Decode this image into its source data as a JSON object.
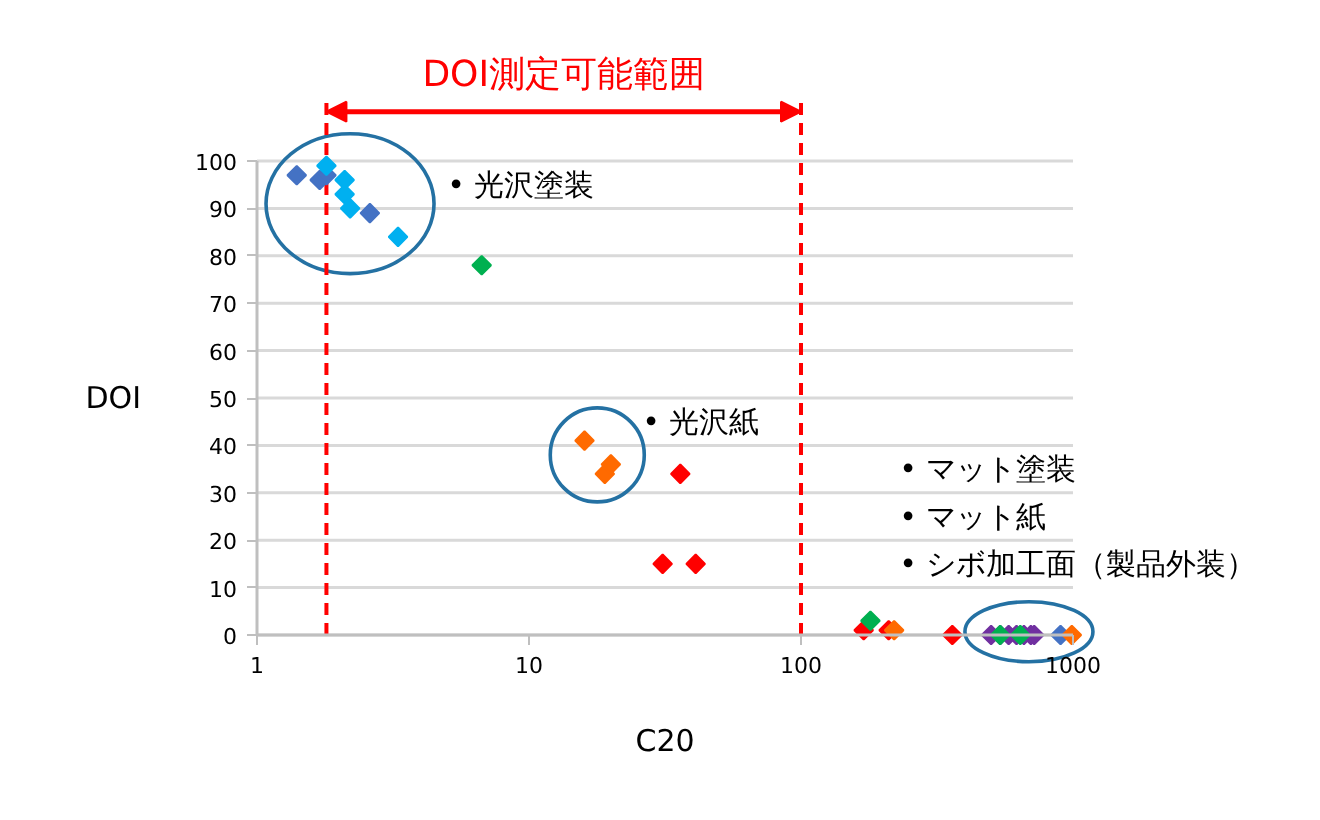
{
  "chart_data": {
    "type": "scatter",
    "xlabel": "C20",
    "ylabel": "DOI",
    "log": "x",
    "xlim": [
      1,
      1000
    ],
    "xticks": [
      1,
      10,
      100,
      1000
    ],
    "ylim": [
      0,
      100
    ],
    "yticks": [
      0,
      10,
      20,
      30,
      40,
      50,
      60,
      70,
      80,
      90,
      100
    ],
    "grid": "y",
    "marker": "diamond",
    "series": [
      {
        "color": "#7030a0",
        "x": [
          500,
          540,
          580,
          620,
          660,
          700,
          720
        ],
        "values": [
          0,
          0,
          0,
          0,
          0,
          0,
          0
        ]
      },
      {
        "color": "#4472c4",
        "x": [
          1.4,
          1.7,
          1.8,
          2.6,
          900
        ],
        "values": [
          97,
          96,
          97,
          89,
          0
        ]
      },
      {
        "color": "#00b0f0",
        "x": [
          1.8,
          2.1,
          2.1,
          2.2,
          3.3
        ],
        "values": [
          99,
          96,
          93,
          90,
          84
        ]
      },
      {
        "color": "#ff0000",
        "x": [
          36,
          31,
          41,
          170,
          210,
          360
        ],
        "values": [
          34,
          15,
          15,
          1,
          1,
          0
        ]
      },
      {
        "color": "#ff6a00",
        "x": [
          16,
          19,
          20,
          220,
          990
        ],
        "values": [
          41,
          34,
          36,
          1,
          0
        ]
      },
      {
        "color": "#00b050",
        "x": [
          6.7,
          180,
          540,
          640
        ],
        "values": [
          78,
          3,
          0,
          0
        ]
      }
    ],
    "ref_lines": [
      {
        "axis": "x",
        "value": 1.8,
        "color": "#ff0000",
        "line_style": "dashed"
      },
      {
        "axis": "x",
        "value": 100,
        "color": "#ff0000",
        "line_style": "dashed"
      }
    ],
    "annotations": [
      "DOI測定可能範囲",
      "• 光沢塗装",
      "• 光沢紙",
      "• マット塗装",
      "• マット紙",
      "• シボ加工面（製品外装）"
    ]
  }
}
